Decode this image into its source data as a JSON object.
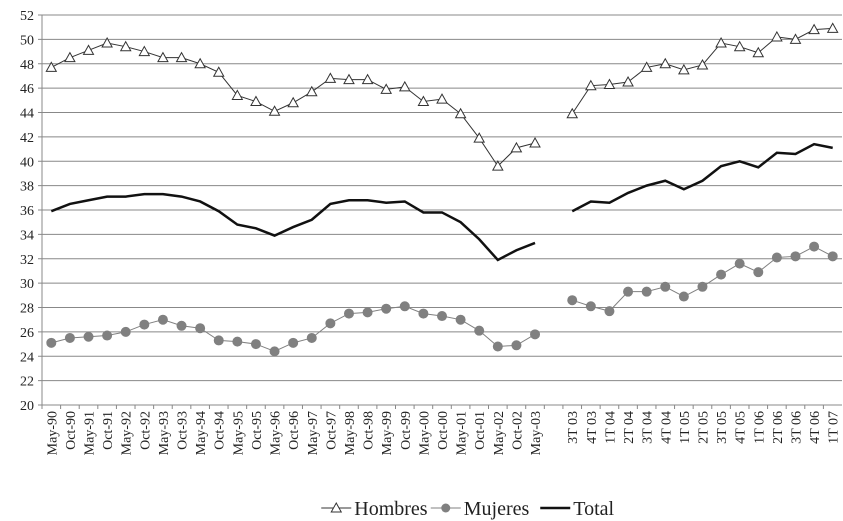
{
  "chart_data": {
    "type": "line",
    "categories": [
      "May-90",
      "Oct-90",
      "May-91",
      "Oct-91",
      "May-92",
      "Oct-92",
      "May-93",
      "Oct-93",
      "May-94",
      "Oct-94",
      "May-95",
      "Oct-95",
      "May-96",
      "Oct-96",
      "May-97",
      "Oct-97",
      "May-98",
      "Oct-98",
      "May-99",
      "Oct-99",
      "May-00",
      "Oct-00",
      "May-01",
      "Oct-01",
      "May-02",
      "Oct-02",
      "May-03",
      null,
      "3T 03",
      "4T 03",
      "1T 04",
      "2T 04",
      "3T 04",
      "4T 04",
      "1T 05",
      "2T 05",
      "3T 05",
      "4T 05",
      "1T 06",
      "2T 06",
      "3T 06",
      "4T 06",
      "1T 07"
    ],
    "series": [
      {
        "name": "Hombres",
        "color": "#333333",
        "marker": "triangle",
        "values": [
          47.7,
          48.5,
          49.1,
          49.7,
          49.4,
          49.0,
          48.5,
          48.5,
          48.0,
          47.3,
          45.4,
          44.9,
          44.1,
          44.8,
          45.7,
          46.8,
          46.7,
          46.7,
          45.9,
          46.1,
          44.9,
          45.1,
          43.9,
          41.9,
          39.6,
          41.1,
          41.5,
          null,
          43.9,
          46.2,
          46.3,
          46.5,
          47.7,
          48.0,
          47.5,
          47.9,
          49.7,
          49.4,
          48.9,
          50.2,
          50.0,
          50.8,
          50.9
        ]
      },
      {
        "name": "Mujeres",
        "color": "#808080",
        "marker": "circle",
        "values": [
          25.1,
          25.5,
          25.6,
          25.7,
          26.0,
          26.6,
          27.0,
          26.5,
          26.3,
          25.3,
          25.2,
          25.0,
          24.4,
          25.1,
          25.5,
          26.7,
          27.5,
          27.6,
          27.9,
          28.1,
          27.5,
          27.3,
          27.0,
          26.1,
          24.8,
          24.9,
          25.8,
          null,
          28.6,
          28.1,
          27.7,
          29.3,
          29.3,
          29.7,
          28.9,
          29.7,
          30.7,
          31.6,
          30.9,
          32.1,
          32.2,
          33.0,
          32.2
        ]
      },
      {
        "name": "Total",
        "color": "#111111",
        "marker": "none",
        "values": [
          35.9,
          36.5,
          36.8,
          37.1,
          37.1,
          37.3,
          37.3,
          37.1,
          36.7,
          35.9,
          34.8,
          34.5,
          33.9,
          34.6,
          35.2,
          36.5,
          36.8,
          36.8,
          36.6,
          36.7,
          35.8,
          35.8,
          35.0,
          33.6,
          31.9,
          32.7,
          33.3,
          null,
          35.9,
          36.7,
          36.6,
          37.4,
          38.0,
          38.4,
          37.7,
          38.4,
          39.6,
          40.0,
          39.5,
          40.7,
          40.6,
          41.4,
          41.1
        ]
      }
    ],
    "ylim": [
      20,
      52
    ],
    "yticks": [
      20,
      22,
      24,
      26,
      28,
      30,
      32,
      34,
      36,
      38,
      40,
      42,
      44,
      46,
      48,
      50,
      52
    ],
    "grid": true,
    "legend": "bottom"
  }
}
